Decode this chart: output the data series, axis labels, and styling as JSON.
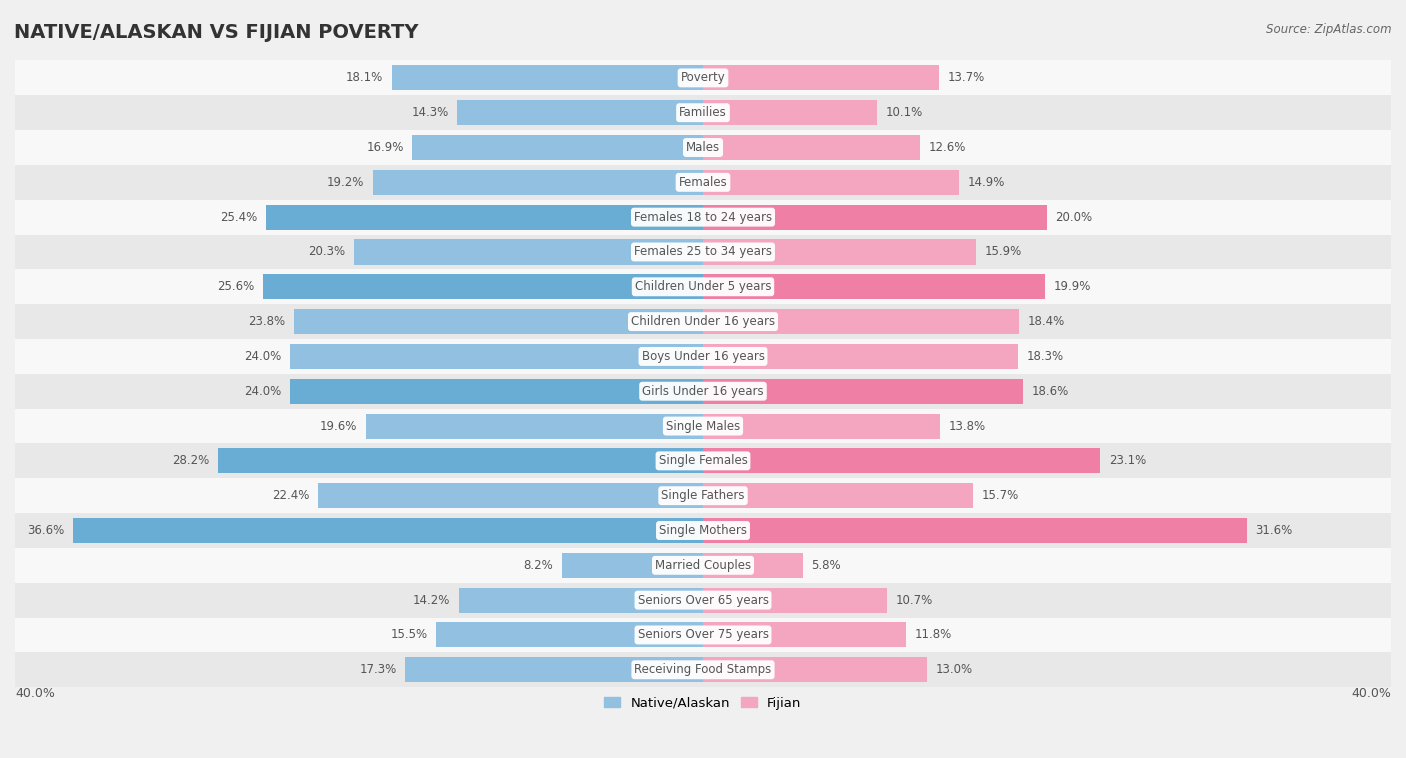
{
  "title": "NATIVE/ALASKAN VS FIJIAN POVERTY",
  "source": "Source: ZipAtlas.com",
  "categories": [
    "Poverty",
    "Families",
    "Males",
    "Females",
    "Females 18 to 24 years",
    "Females 25 to 34 years",
    "Children Under 5 years",
    "Children Under 16 years",
    "Boys Under 16 years",
    "Girls Under 16 years",
    "Single Males",
    "Single Females",
    "Single Fathers",
    "Single Mothers",
    "Married Couples",
    "Seniors Over 65 years",
    "Seniors Over 75 years",
    "Receiving Food Stamps"
  ],
  "native_values": [
    18.1,
    14.3,
    16.9,
    19.2,
    25.4,
    20.3,
    25.6,
    23.8,
    24.0,
    24.0,
    19.6,
    28.2,
    22.4,
    36.6,
    8.2,
    14.2,
    15.5,
    17.3
  ],
  "fijian_values": [
    13.7,
    10.1,
    12.6,
    14.9,
    20.0,
    15.9,
    19.9,
    18.4,
    18.3,
    18.6,
    13.8,
    23.1,
    15.7,
    31.6,
    5.8,
    10.7,
    11.8,
    13.0
  ],
  "native_color": "#92c0e0",
  "fijian_color": "#f4a6c0",
  "native_highlight_color": "#6aadd4",
  "fijian_highlight_color": "#f07fa5",
  "highlight_rows": [
    4,
    6,
    9,
    11,
    13
  ],
  "xlim": 40.0,
  "background_color": "#f0f0f0",
  "row_bg_light": "#f8f8f8",
  "row_bg_dark": "#e8e8e8",
  "bar_height": 0.72,
  "title_fontsize": 14,
  "label_fontsize": 8.5,
  "value_fontsize": 8.5,
  "label_color": "#555555",
  "value_color": "#555555"
}
